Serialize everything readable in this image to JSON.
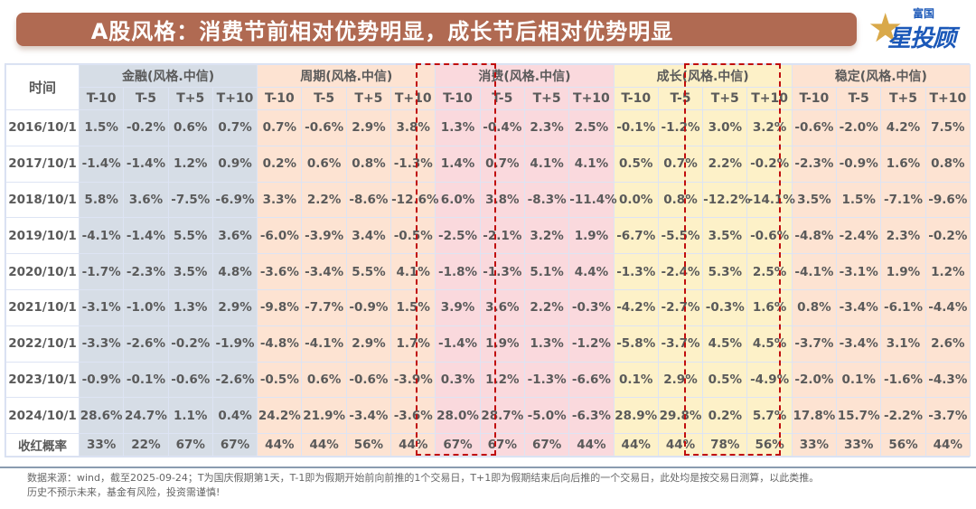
{
  "title": "A股风格：消费节前相对优势明显，成长节后相对优势明显",
  "logo": {
    "top": "富国",
    "main": "星投顾",
    "star_icon": "star"
  },
  "colors": {
    "title_bg": "#b06a52",
    "finance_bg": "#d6dde6",
    "cycle_bg": "#fde3d2",
    "consumer_bg": "#fad9dd",
    "growth_bg": "#fdf1c8",
    "stable_bg": "#fde3d2",
    "highlight_border": "#c00d0d",
    "logo_blue": "#1b58b8",
    "logo_gold": "#d9a94a"
  },
  "table": {
    "time_header": "时间",
    "groups": [
      {
        "label": "金融(风格.中信)"
      },
      {
        "label": "周期(风格.中信)"
      },
      {
        "label": "消费(风格.中信)"
      },
      {
        "label": "成长(风格.中信)"
      },
      {
        "label": "稳定(风格.中信)"
      }
    ],
    "sub_headers": [
      "T-10",
      "T-5",
      "T+5",
      "T+10"
    ],
    "rows": [
      {
        "date": "2016/10/1",
        "values": [
          "1.5%",
          "-0.2%",
          "0.6%",
          "0.7%",
          "0.7%",
          "-0.6%",
          "2.9%",
          "3.8%",
          "1.3%",
          "-0.4%",
          "2.3%",
          "2.5%",
          "-0.1%",
          "-1.2%",
          "3.0%",
          "3.2%",
          "-0.6%",
          "-2.0%",
          "4.2%",
          "7.5%"
        ]
      },
      {
        "date": "2017/10/1",
        "values": [
          "-1.4%",
          "-1.4%",
          "1.2%",
          "0.9%",
          "0.2%",
          "0.6%",
          "0.8%",
          "-1.3%",
          "1.4%",
          "0.7%",
          "4.1%",
          "4.1%",
          "0.5%",
          "0.7%",
          "2.2%",
          "-0.2%",
          "-2.3%",
          "-0.9%",
          "1.6%",
          "0.8%"
        ]
      },
      {
        "date": "2018/10/1",
        "values": [
          "5.8%",
          "3.6%",
          "-7.5%",
          "-6.9%",
          "3.3%",
          "2.2%",
          "-8.6%",
          "-12.6%",
          "6.0%",
          "3.8%",
          "-8.3%",
          "-11.4%",
          "0.0%",
          "0.8%",
          "-12.2%",
          "-14.1%",
          "3.5%",
          "1.5%",
          "-7.1%",
          "-9.6%"
        ]
      },
      {
        "date": "2019/10/1",
        "values": [
          "-4.1%",
          "-1.4%",
          "5.5%",
          "3.6%",
          "-6.0%",
          "-3.9%",
          "3.4%",
          "-0.5%",
          "-2.5%",
          "-2.1%",
          "3.2%",
          "1.9%",
          "-6.7%",
          "-5.5%",
          "3.5%",
          "-0.6%",
          "-4.8%",
          "-2.4%",
          "2.3%",
          "-0.2%"
        ]
      },
      {
        "date": "2020/10/1",
        "values": [
          "-1.7%",
          "-2.3%",
          "3.5%",
          "4.8%",
          "-3.6%",
          "-3.4%",
          "5.5%",
          "4.1%",
          "-1.8%",
          "-1.3%",
          "5.1%",
          "4.4%",
          "-1.3%",
          "-2.4%",
          "5.3%",
          "2.5%",
          "-4.1%",
          "-3.1%",
          "1.9%",
          "1.2%"
        ]
      },
      {
        "date": "2021/10/1",
        "values": [
          "-3.1%",
          "-1.0%",
          "1.3%",
          "2.9%",
          "-9.8%",
          "-7.7%",
          "-0.9%",
          "1.5%",
          "3.9%",
          "3.6%",
          "2.2%",
          "-0.3%",
          "-4.2%",
          "-2.7%",
          "-0.3%",
          "1.6%",
          "0.8%",
          "-3.4%",
          "-6.1%",
          "-4.4%"
        ]
      },
      {
        "date": "2022/10/1",
        "values": [
          "-3.3%",
          "-2.6%",
          "-0.2%",
          "-1.9%",
          "-4.8%",
          "-4.1%",
          "2.9%",
          "1.7%",
          "-1.4%",
          "1.9%",
          "1.3%",
          "-1.2%",
          "-5.8%",
          "-3.7%",
          "4.5%",
          "4.5%",
          "-3.7%",
          "-3.4%",
          "3.1%",
          "2.6%"
        ]
      },
      {
        "date": "2023/10/1",
        "values": [
          "-0.9%",
          "-0.1%",
          "-0.6%",
          "-2.6%",
          "-0.5%",
          "0.6%",
          "-0.6%",
          "-3.9%",
          "0.3%",
          "1.2%",
          "-1.3%",
          "-6.6%",
          "0.1%",
          "2.9%",
          "0.5%",
          "-4.9%",
          "-2.0%",
          "0.1%",
          "-1.6%",
          "-4.3%"
        ]
      },
      {
        "date": "2024/10/1",
        "values": [
          "28.6%",
          "24.7%",
          "1.1%",
          "0.4%",
          "24.2%",
          "21.9%",
          "-3.4%",
          "-3.6%",
          "28.0%",
          "28.7%",
          "-5.0%",
          "-6.3%",
          "28.9%",
          "29.8%",
          "0.2%",
          "5.7%",
          "17.8%",
          "15.7%",
          "-2.2%",
          "-3.7%"
        ]
      }
    ],
    "summary_row": {
      "label": "收红概率",
      "values": [
        "33%",
        "22%",
        "67%",
        "67%",
        "44%",
        "44%",
        "56%",
        "44%",
        "67%",
        "67%",
        "67%",
        "44%",
        "44%",
        "44%",
        "78%",
        "56%",
        "33%",
        "33%",
        "56%",
        "44%"
      ]
    }
  },
  "footer": {
    "line1": "数据来源：wind，截至2025-09-24；T为国庆假期第1天，T-1即为假期开始前向前推的1个交易日，T+1即为假期结束后向后推的一个交易日，此处均是按交易日测算，以此类推。",
    "line2": "历史不预示未来，基金有风险，投资需谨慎!"
  }
}
